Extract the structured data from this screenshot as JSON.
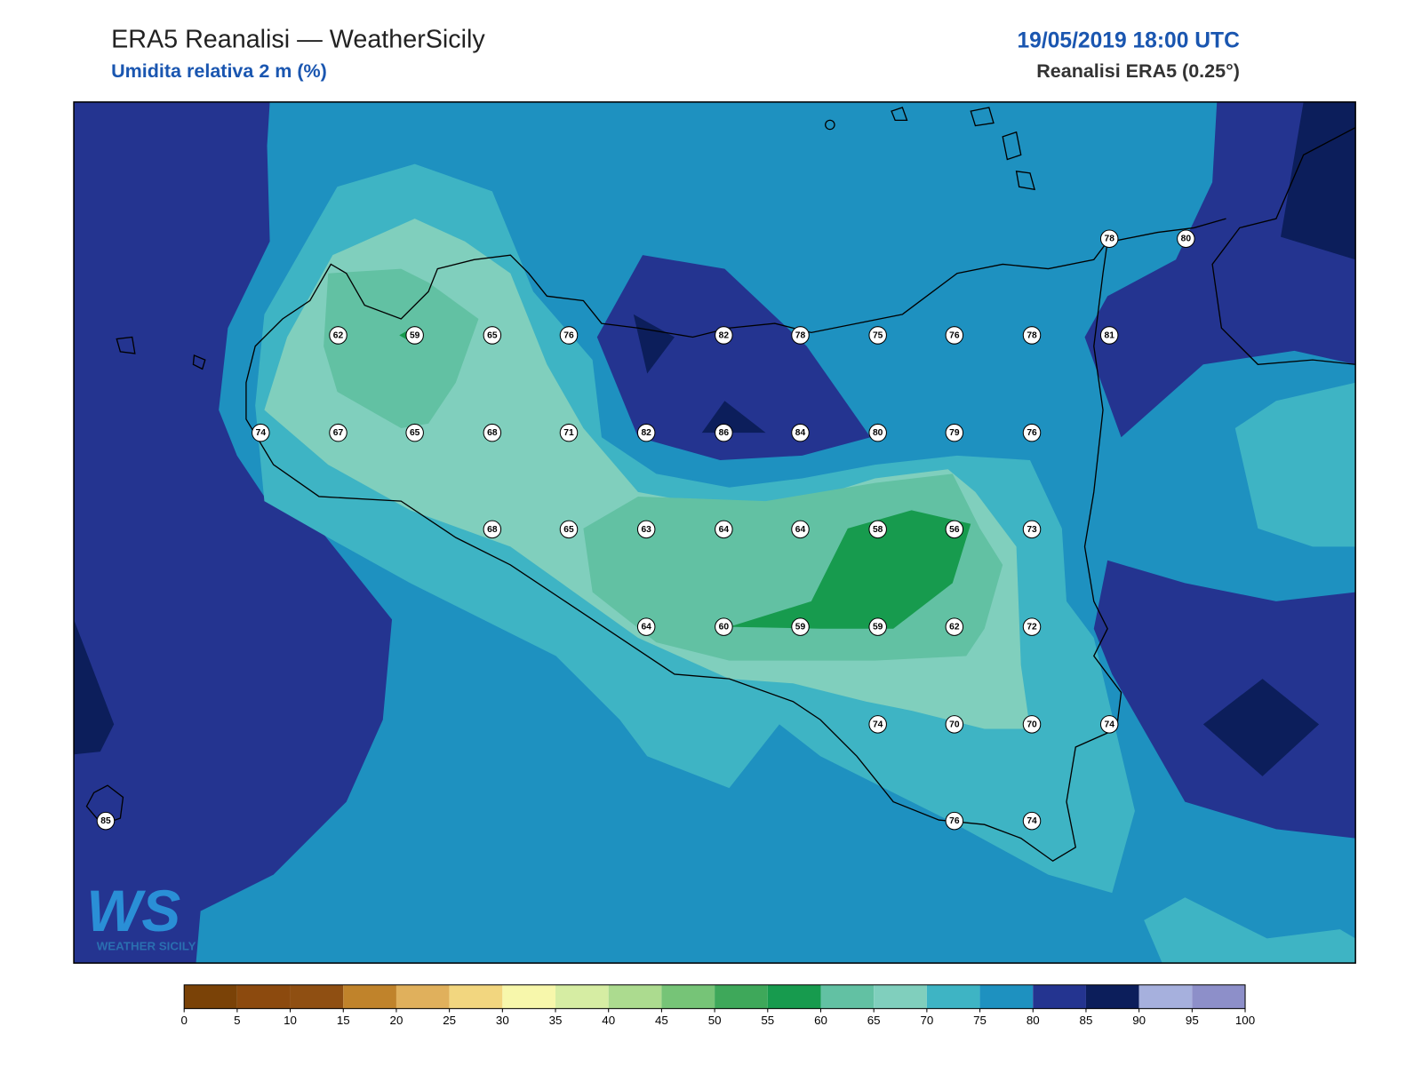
{
  "title": "ERA5 Reanalisi — WeatherSicily",
  "subtitle": "Umidita relativa 2 m (%)",
  "datetime": "19/05/2019 18:00 UTC",
  "source": "Reanalisi ERA5 (0.25°)",
  "logo": {
    "mark": "WS",
    "text": "WEATHER SICILY"
  },
  "station_values": [
    78,
    80,
    62,
    59,
    65,
    76,
    82,
    78,
    75,
    76,
    78,
    81,
    74,
    67,
    65,
    68,
    71,
    82,
    86,
    84,
    80,
    79,
    76,
    68,
    65,
    63,
    64,
    64,
    58,
    56,
    73,
    64,
    60,
    59,
    59,
    62,
    72,
    74,
    70,
    70,
    74,
    85,
    76,
    74
  ],
  "colorbar": {
    "ticks": [
      0,
      5,
      10,
      15,
      20,
      25,
      30,
      35,
      40,
      45,
      50,
      55,
      60,
      65,
      70,
      75,
      80,
      85,
      90,
      95,
      100
    ],
    "colors": [
      "#7a4207",
      "#8c4a0e",
      "#8f4f12",
      "#c0832b",
      "#e0b05c",
      "#f2d67f",
      "#f7f7ab",
      "#d6eda3",
      "#acdb8f",
      "#76c477",
      "#3ea85a",
      "#179b4e",
      "#62c1a3",
      "#80cfbd",
      "#3eb4c4",
      "#1e91c0",
      "#243490",
      "#0c1e5b",
      "#a6b0dd",
      "#8d8fc9"
    ]
  }
}
